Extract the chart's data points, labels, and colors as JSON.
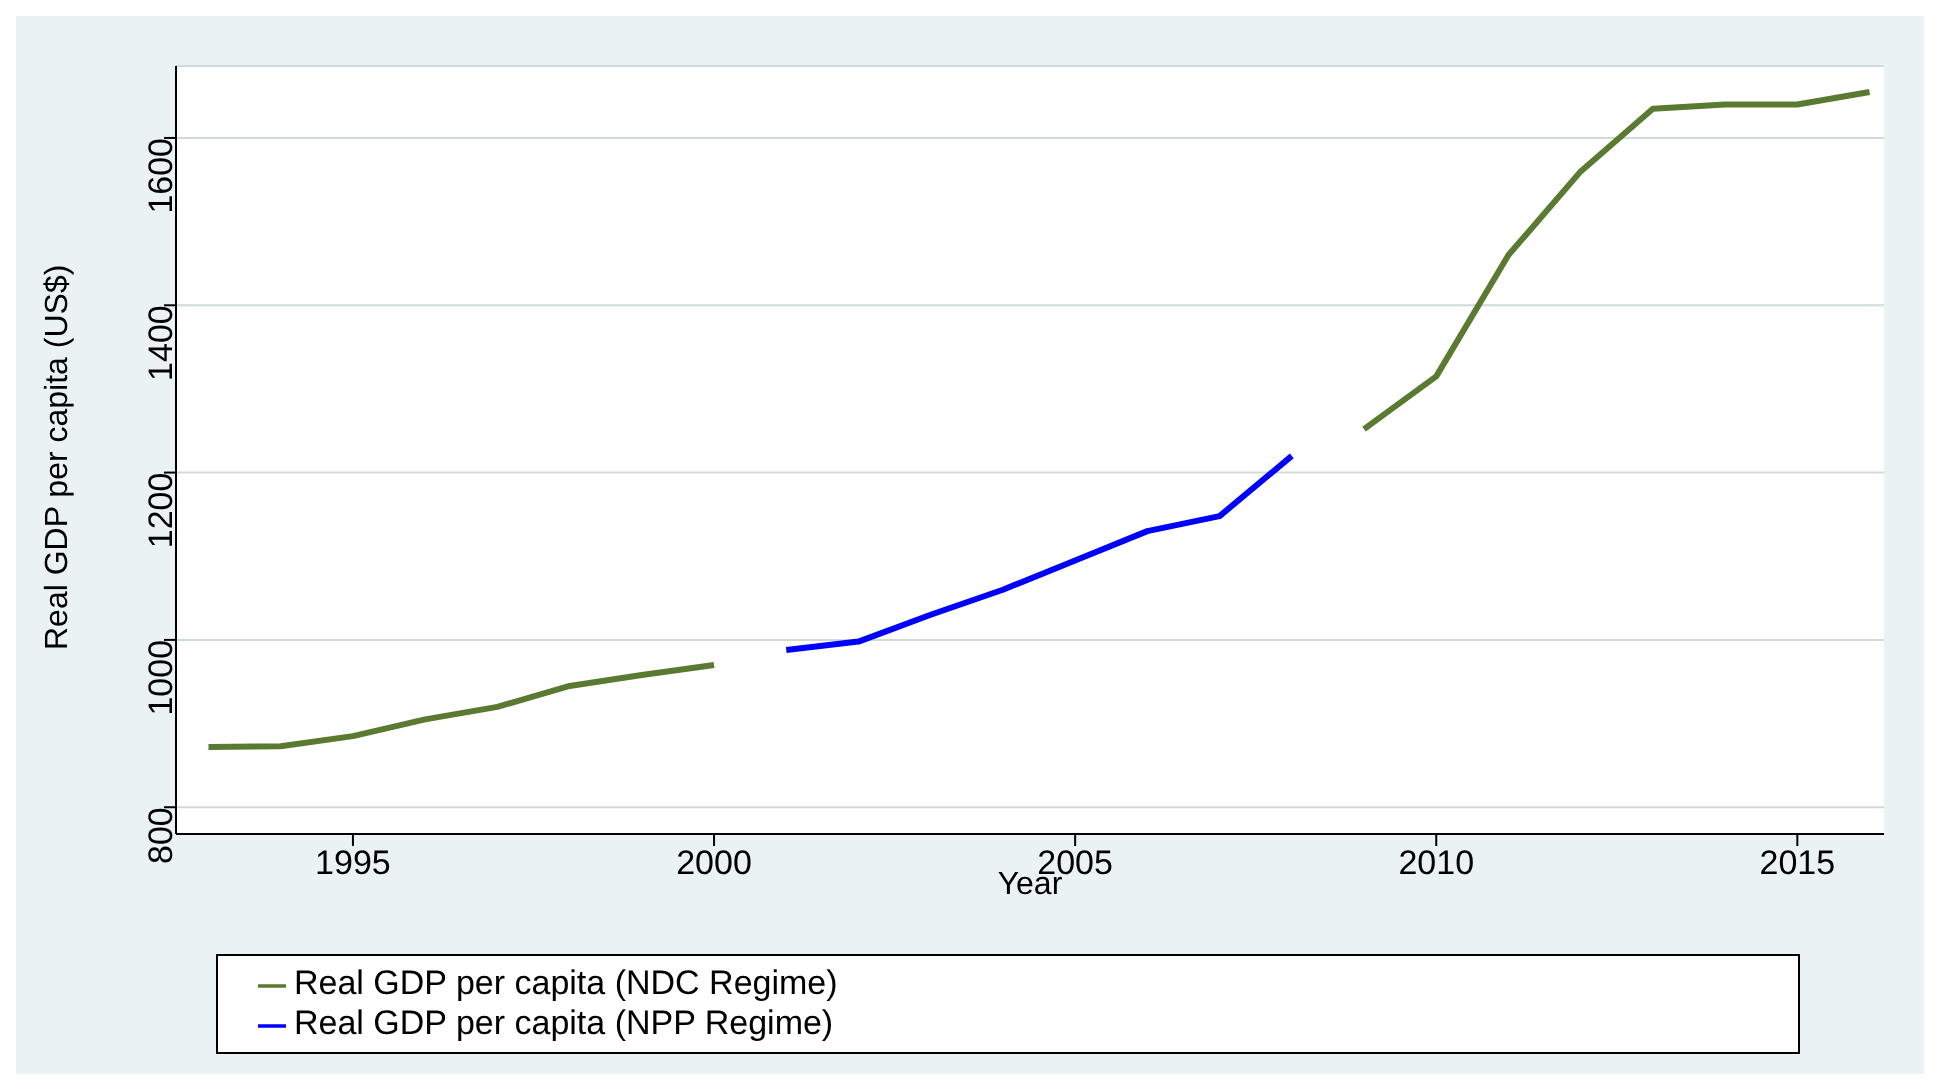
{
  "chart_data": {
    "type": "line",
    "xlabel": "Year",
    "ylabel": "Real GDP per capita (US$)",
    "x": [
      1993,
      1994,
      1995,
      1996,
      1997,
      1998,
      1999,
      2000,
      2001,
      2002,
      2003,
      2004,
      2005,
      2006,
      2007,
      2008,
      2009,
      2010,
      2011,
      2012,
      2013,
      2014,
      2015,
      2016
    ],
    "series": [
      {
        "name": "Real GDP per capita (NDC Regime)",
        "color": "#5a7a32",
        "values": [
          872,
          873,
          885,
          905,
          920,
          945,
          958,
          970,
          null,
          null,
          null,
          null,
          null,
          null,
          null,
          null,
          1252,
          1315,
          1460,
          1560,
          1635,
          1640,
          1640,
          1655
        ]
      },
      {
        "name": "Real GDP per capita (NPP Regime)",
        "color": "#0000ff",
        "values": [
          null,
          null,
          null,
          null,
          null,
          null,
          null,
          null,
          988,
          998,
          1030,
          1060,
          1095,
          1130,
          1148,
          1220,
          null,
          null,
          null,
          null,
          null,
          null,
          null,
          null
        ]
      }
    ],
    "xlim": [
      1992.55,
      2016.2
    ],
    "xticks": [
      1995,
      2000,
      2005,
      2010,
      2015
    ],
    "ylim": [
      768,
      1686
    ],
    "yticks": [
      800,
      1000,
      1200,
      1400,
      1600
    ],
    "grid": "y",
    "legend": "bottom",
    "marker": "none",
    "line_style": "solid"
  }
}
